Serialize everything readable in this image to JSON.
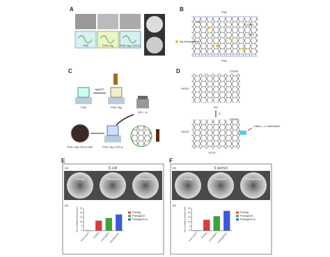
{
  "panels": {
    "A": {
      "label": "A",
      "captions": [
        "PVA",
        "PVA / Ag",
        "PVA / Ag / GO-IL"
      ]
    },
    "B": {
      "label": "B",
      "texts": [
        "PVA",
        "Ag nanoparticle",
        "COOH",
        "C=O",
        "OH",
        "PVA"
      ]
    },
    "C": {
      "label": "C",
      "texts": [
        "AgNO3",
        "PVA",
        "PVA / Ag",
        "GO + IL",
        "PVA / Ag / GO-IL film",
        "PVA / Ag / GO-IL"
      ]
    },
    "D": {
      "label": "D",
      "texts": [
        "COOH",
        "HOOC",
        "GO",
        "IL",
        "COOH",
        "HOOC",
        "GO-IL",
        "Cation – π interaction"
      ]
    },
    "E": {
      "label": "E",
      "a": "(a)",
      "b": "(b)",
      "plates": [
        "PVA/Ag",
        "PVA/Ag/GO",
        "PVA/Ag/GO-IL"
      ]
    },
    "F": {
      "label": "F",
      "a": "(a)",
      "b": "(b)",
      "plates": [
        "PVA/Ag",
        "PVA/Ag/GO",
        "PVA/Ag/GO-IL"
      ]
    }
  },
  "chart_data": [
    {
      "type": "bar",
      "title": "E.coli",
      "y_label": "Zone of inhibition diameter (mm)",
      "categories": [
        "PVA Control",
        "PVA/Ag",
        "PVA/Ag/GO",
        "PVA/Ag/GO-IL"
      ],
      "values": [
        0,
        11,
        14,
        18
      ],
      "colors": [
        "#888888",
        "#e03a3a",
        "#3aa63a",
        "#3a5ae0"
      ],
      "legend": [
        "PVA/Ag",
        "PVA/Ag/GO",
        "PVA/Ag/GO-IL"
      ],
      "ylim": [
        0,
        25
      ],
      "yticks": [
        0,
        5,
        10,
        15,
        20,
        25
      ]
    },
    {
      "type": "bar",
      "title": "S.aureus",
      "y_label": "Zone of inhibition diameter (mm)",
      "categories": [
        "PVA Control",
        "PVA/Ag",
        "PVA/Ag/GO",
        "PVA/Ag/GO-IL"
      ],
      "values": [
        0,
        12,
        16,
        22
      ],
      "colors": [
        "#888888",
        "#e03a3a",
        "#3aa63a",
        "#3a5ae0"
      ],
      "legend": [
        "PVA/Ag",
        "PVA/Ag/GO",
        "PVA/Ag/GO-IL"
      ],
      "ylim": [
        0,
        25
      ],
      "yticks": [
        0,
        5,
        10,
        15,
        20,
        25
      ]
    }
  ]
}
